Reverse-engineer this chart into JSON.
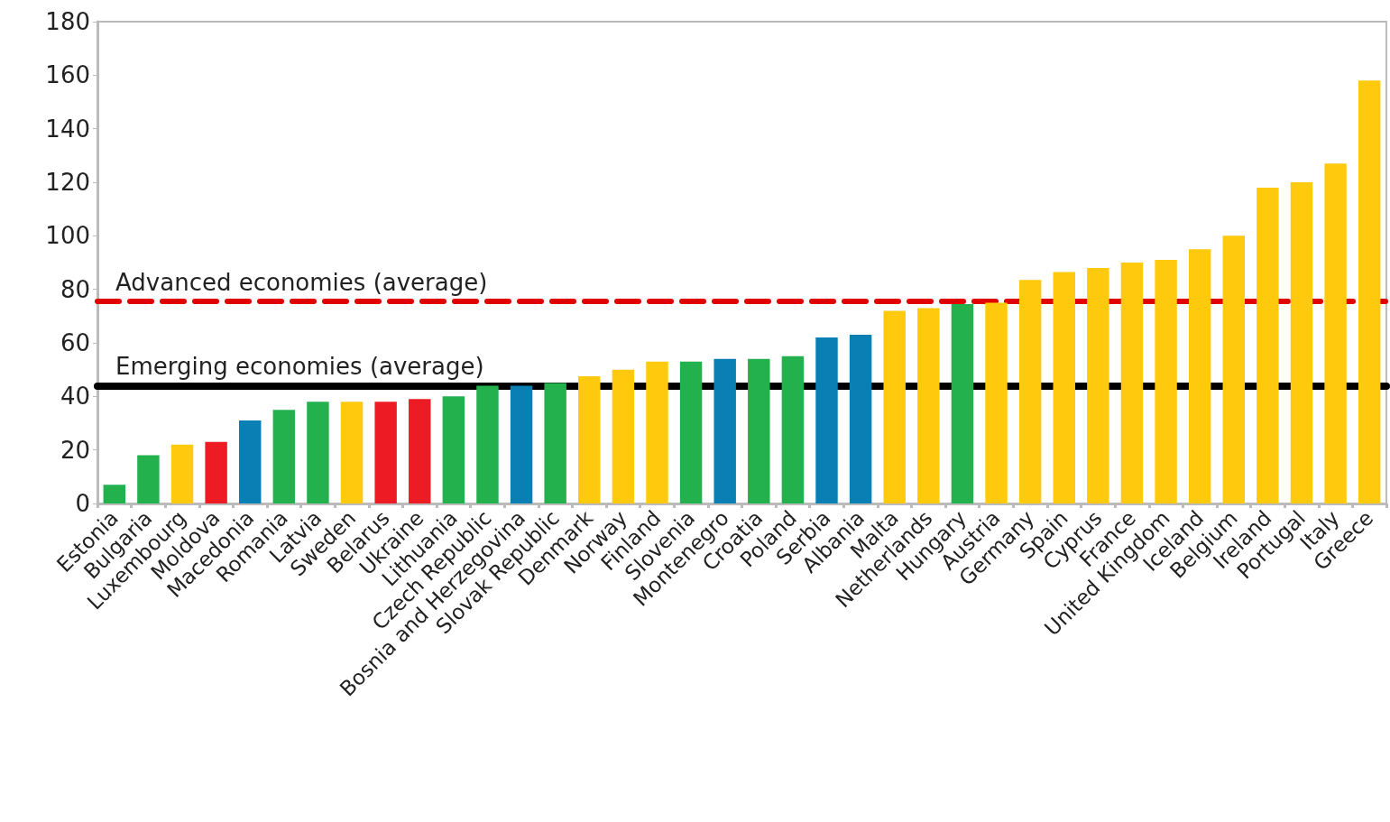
{
  "chart_data": {
    "type": "bar",
    "categories": [
      "Estonia",
      "Bulgaria",
      "Luxembourg",
      "Moldova",
      "Macedonia",
      "Romania",
      "Latvia",
      "Sweden",
      "Belarus",
      "Ukraine",
      "Lithuania",
      "Czech Republic",
      "Bosnia and Herzegovina",
      "Slovak Republic",
      "Denmark",
      "Norway",
      "Finland",
      "Slovenia",
      "Montenegro",
      "Croatia",
      "Poland",
      "Serbia",
      "Albania",
      "Malta",
      "Netherlands",
      "Hungary",
      "Austria",
      "Germany",
      "Spain",
      "Cyprus",
      "France",
      "United Kingdom",
      "Iceland",
      "Belgium",
      "Ireland",
      "Portugal",
      "Italy",
      "Greece"
    ],
    "values": [
      7,
      18,
      22,
      23,
      31,
      35,
      38,
      38,
      38,
      39,
      40,
      44,
      44,
      45,
      47.5,
      50,
      53,
      53,
      54,
      54,
      55,
      62,
      63,
      72,
      73,
      74.5,
      75,
      83.5,
      86.5,
      88,
      90,
      91,
      95,
      100,
      118,
      120,
      127,
      158
    ],
    "colors": [
      "#22b14c",
      "#22b14c",
      "#ffc90e",
      "#ed1c24",
      "#0a7fb4",
      "#22b14c",
      "#22b14c",
      "#ffc90e",
      "#ed1c24",
      "#ed1c24",
      "#22b14c",
      "#22b14c",
      "#0a7fb4",
      "#22b14c",
      "#ffc90e",
      "#ffc90e",
      "#ffc90e",
      "#22b14c",
      "#0a7fb4",
      "#22b14c",
      "#22b14c",
      "#0a7fb4",
      "#0a7fb4",
      "#ffc90e",
      "#ffc90e",
      "#22b14c",
      "#ffc90e",
      "#ffc90e",
      "#ffc90e",
      "#ffc90e",
      "#ffc90e",
      "#ffc90e",
      "#ffc90e",
      "#ffc90e",
      "#ffc90e",
      "#ffc90e",
      "#ffc90e",
      "#ffc90e"
    ],
    "ylim": [
      0,
      180
    ],
    "yticks": [
      0,
      20,
      40,
      60,
      80,
      100,
      120,
      140,
      160,
      180
    ],
    "grid": false,
    "ref_lines": [
      {
        "axis": "y",
        "value": 75.5,
        "label": "Advanced economies (average)",
        "color": "#e00000",
        "line_style": "dashed"
      },
      {
        "axis": "y",
        "value": 44,
        "label": "Emerging economies (average)",
        "color": "#000000",
        "line_style": "solid"
      }
    ]
  }
}
